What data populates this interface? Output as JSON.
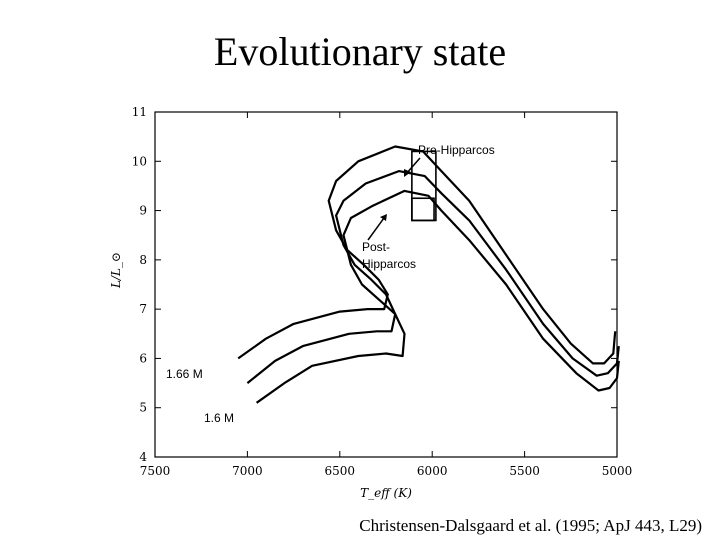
{
  "title": "Evolutionary state",
  "citation": "Christensen-Dalsgaard et al. (1995; ApJ 443, L29)",
  "chart_data": {
    "type": "line",
    "xlabel": "T_eff (K)",
    "ylabel": "L/L_⊙",
    "xlim": [
      7500,
      5000
    ],
    "ylim": [
      4,
      11
    ],
    "x_ticks": [
      7500,
      7000,
      6500,
      6000,
      5500,
      5000
    ],
    "x_tick_labels": [
      "7500",
      "7000",
      "6500",
      "6000",
      "5500",
      "5000"
    ],
    "y_ticks": [
      4,
      5,
      6,
      7,
      8,
      9,
      10,
      11
    ],
    "y_tick_labels": [
      "4",
      "5",
      "6",
      "7",
      "8",
      "9",
      "10",
      "11"
    ],
    "series": [
      {
        "name": "upper track",
        "x": [
          7050,
          6900,
          6750,
          6500,
          6350,
          6260,
          6240,
          6290,
          6370,
          6460,
          6520,
          6560,
          6520,
          6400,
          6200,
          6050,
          5950,
          5800,
          5600,
          5400,
          5250,
          5130,
          5070,
          5020,
          5010
        ],
        "y": [
          6.0,
          6.4,
          6.7,
          6.95,
          7.0,
          7.0,
          7.3,
          7.6,
          7.9,
          8.2,
          8.6,
          9.2,
          9.6,
          10.0,
          10.3,
          10.2,
          9.8,
          9.2,
          8.1,
          7.0,
          6.3,
          5.9,
          5.9,
          6.1,
          6.55
        ]
      },
      {
        "name": "middle track",
        "x": [
          7000,
          6850,
          6700,
          6450,
          6300,
          6220,
          6200,
          6250,
          6330,
          6420,
          6480,
          6520,
          6480,
          6360,
          6180,
          6040,
          5950,
          5800,
          5600,
          5400,
          5240,
          5110,
          5050,
          5000,
          4990
        ],
        "y": [
          5.5,
          5.95,
          6.25,
          6.5,
          6.55,
          6.55,
          6.9,
          7.3,
          7.6,
          7.9,
          8.3,
          8.9,
          9.2,
          9.55,
          9.8,
          9.7,
          9.35,
          8.8,
          7.8,
          6.7,
          6.0,
          5.65,
          5.7,
          5.9,
          6.25
        ]
      },
      {
        "name": "lower track",
        "x": [
          6950,
          6800,
          6650,
          6400,
          6250,
          6160,
          6150,
          6200,
          6290,
          6380,
          6440,
          6480,
          6440,
          6320,
          6150,
          6020,
          5950,
          5800,
          5600,
          5400,
          5220,
          5100,
          5040,
          5000,
          4990
        ],
        "y": [
          5.1,
          5.5,
          5.85,
          6.05,
          6.1,
          6.05,
          6.5,
          6.9,
          7.2,
          7.5,
          7.9,
          8.5,
          8.85,
          9.1,
          9.4,
          9.3,
          9.0,
          8.4,
          7.5,
          6.4,
          5.7,
          5.35,
          5.4,
          5.6,
          5.95
        ]
      }
    ],
    "annotations": {
      "pre_hipparcos": "Pre-Hipparcos",
      "post_hipparcos": [
        "Post-",
        "Hipparcos"
      ],
      "mass_label_1": "1.66 M",
      "mass_label_2": "1.6 M"
    },
    "error_boxes": [
      {
        "name": "pre-hipparcos-box",
        "x0": 6110,
        "x1": 5980,
        "y0": 8.8,
        "y1": 10.2
      },
      {
        "name": "post-hipparcos-box",
        "x0": 6110,
        "x1": 5990,
        "y0": 8.8,
        "y1": 9.25
      }
    ]
  }
}
